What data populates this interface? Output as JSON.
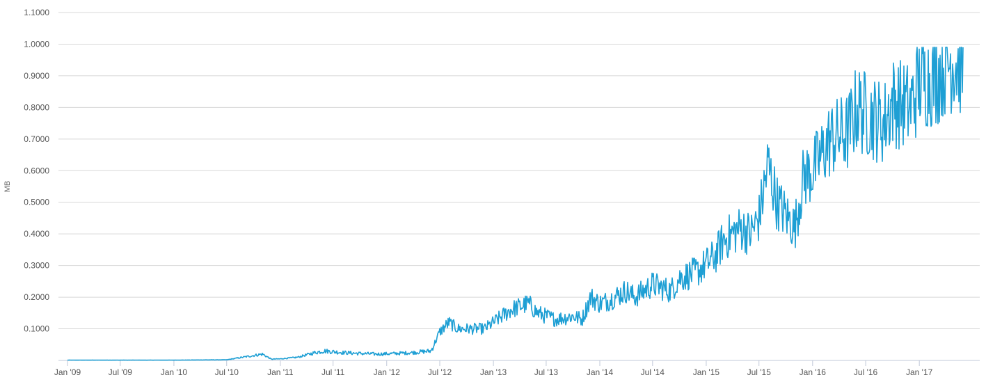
{
  "chart_data": {
    "type": "line",
    "title": "",
    "xlabel": "",
    "ylabel": "MB",
    "x_ticks": [
      "Jan '09",
      "Jul '09",
      "Jan '10",
      "Jul '10",
      "Jan '11",
      "Jul '11",
      "Jan '12",
      "Jul '12",
      "Jan '13",
      "Jul '13",
      "Jan '14",
      "Jul '14",
      "Jan '15",
      "Jul '15",
      "Jan '16",
      "Jul '16",
      "Jan '17"
    ],
    "y_ticks": [
      "0.1000",
      "0.2000",
      "0.3000",
      "0.4000",
      "0.5000",
      "0.6000",
      "0.7000",
      "0.8000",
      "0.9000",
      "1.0000",
      "1.1000"
    ],
    "xlim": [
      "2009-01-01",
      "2017-07-01"
    ],
    "ylim": [
      0,
      1.1
    ],
    "grid": true,
    "legend": "none",
    "color": "#1e9fd4",
    "series": [
      {
        "x": [
          "2009-01",
          "2009-07",
          "2010-01",
          "2010-07",
          "2010-11",
          "2010-12",
          "2011-01",
          "2011-03",
          "2011-05",
          "2011-06",
          "2011-08",
          "2011-10",
          "2011-12",
          "2012-02",
          "2012-04",
          "2012-06",
          "2012-07",
          "2012-08",
          "2012-09",
          "2012-10",
          "2012-12",
          "2013-01",
          "2013-03",
          "2013-05",
          "2013-06",
          "2013-08",
          "2013-10",
          "2013-11",
          "2013-12",
          "2014-01",
          "2014-02",
          "2014-04",
          "2014-05",
          "2014-07",
          "2014-09",
          "2014-10",
          "2014-12",
          "2015-02",
          "2015-03",
          "2015-05",
          "2015-06",
          "2015-07",
          "2015-08",
          "2015-09",
          "2015-11",
          "2015-12",
          "2016-01",
          "2016-02",
          "2016-03",
          "2016-05",
          "2016-06",
          "2016-07",
          "2016-09",
          "2016-10",
          "2016-12",
          "2017-01",
          "2017-03",
          "2017-04",
          "2017-05",
          "2017-06"
        ],
        "values": [
          0.001,
          0.001,
          0.001,
          0.002,
          0.02,
          0.004,
          0.005,
          0.01,
          0.025,
          0.03,
          0.025,
          0.022,
          0.02,
          0.022,
          0.025,
          0.03,
          0.09,
          0.12,
          0.1,
          0.1,
          0.1,
          0.12,
          0.16,
          0.18,
          0.15,
          0.13,
          0.14,
          0.13,
          0.2,
          0.18,
          0.19,
          0.22,
          0.2,
          0.24,
          0.22,
          0.26,
          0.28,
          0.33,
          0.38,
          0.42,
          0.4,
          0.45,
          0.62,
          0.5,
          0.42,
          0.58,
          0.6,
          0.65,
          0.7,
          0.72,
          0.8,
          0.78,
          0.75,
          0.82,
          0.8,
          0.88,
          0.9,
          0.94,
          0.95,
          0.93
        ]
      }
    ]
  }
}
